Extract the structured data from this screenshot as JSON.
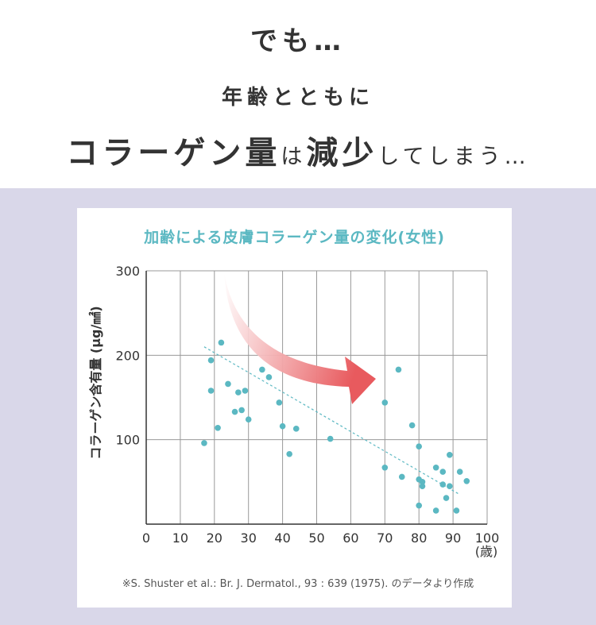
{
  "heading": {
    "line1": "でも…",
    "line2": "年齢とともに",
    "line3_parts": [
      "コラーゲン量",
      "は",
      "減少",
      "してしまう…"
    ]
  },
  "chart_data": {
    "type": "scatter",
    "title": "加齢による皮膚コラーゲン量の変化(女性)",
    "xlabel": "(歳)",
    "ylabel": "コラーゲン含有量 (μg/㎟)",
    "xlim": [
      0,
      100
    ],
    "ylim": [
      0,
      300
    ],
    "xticks": [
      0,
      10,
      20,
      30,
      40,
      50,
      60,
      70,
      80,
      90,
      100
    ],
    "yticks": [
      100,
      200,
      300
    ],
    "grid": true,
    "colors": {
      "points": "#5bb8c2",
      "trend": "#5bb8c2",
      "arrow": "#e85a5e"
    },
    "trendline": {
      "x": [
        17,
        92
      ],
      "y": [
        210,
        35
      ]
    },
    "points": [
      {
        "x": 17,
        "y": 96
      },
      {
        "x": 19,
        "y": 158
      },
      {
        "x": 19,
        "y": 194
      },
      {
        "x": 21,
        "y": 114
      },
      {
        "x": 22,
        "y": 215
      },
      {
        "x": 24,
        "y": 166
      },
      {
        "x": 26,
        "y": 133
      },
      {
        "x": 27,
        "y": 156
      },
      {
        "x": 28,
        "y": 135
      },
      {
        "x": 29,
        "y": 158
      },
      {
        "x": 30,
        "y": 124
      },
      {
        "x": 34,
        "y": 183
      },
      {
        "x": 36,
        "y": 174
      },
      {
        "x": 39,
        "y": 144
      },
      {
        "x": 40,
        "y": 116
      },
      {
        "x": 42,
        "y": 83
      },
      {
        "x": 44,
        "y": 113
      },
      {
        "x": 54,
        "y": 101
      },
      {
        "x": 70,
        "y": 144
      },
      {
        "x": 70,
        "y": 67
      },
      {
        "x": 74,
        "y": 183
      },
      {
        "x": 75,
        "y": 56
      },
      {
        "x": 78,
        "y": 117
      },
      {
        "x": 80,
        "y": 92
      },
      {
        "x": 80,
        "y": 53
      },
      {
        "x": 80,
        "y": 22
      },
      {
        "x": 81,
        "y": 45
      },
      {
        "x": 81,
        "y": 50
      },
      {
        "x": 85,
        "y": 16
      },
      {
        "x": 85,
        "y": 67
      },
      {
        "x": 87,
        "y": 62
      },
      {
        "x": 87,
        "y": 47
      },
      {
        "x": 88,
        "y": 31
      },
      {
        "x": 89,
        "y": 82
      },
      {
        "x": 89,
        "y": 45
      },
      {
        "x": 91,
        "y": 16
      },
      {
        "x": 92,
        "y": 62
      },
      {
        "x": 94,
        "y": 51
      }
    ]
  },
  "source": "※S. Shuster et al.: Br. J. Dermatol., 93 : 639 (1975). のデータより作成"
}
